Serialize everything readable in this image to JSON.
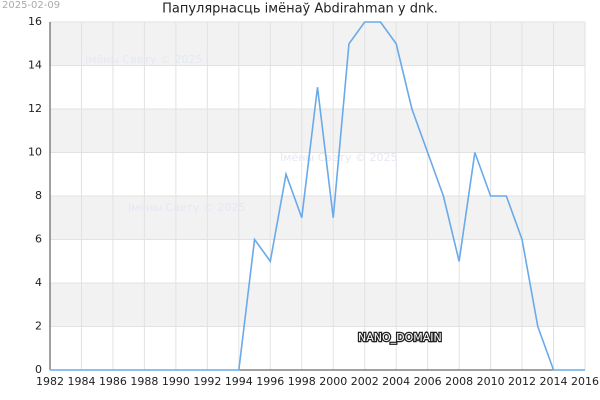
{
  "chart_data": {
    "type": "line",
    "title": "Папулярнасць імёнаў Abdirahman у dnk.",
    "date_stamp": "2025-02-09",
    "x": [
      1982,
      1983,
      1984,
      1985,
      1986,
      1987,
      1988,
      1989,
      1990,
      1991,
      1992,
      1993,
      1994,
      1995,
      1996,
      1997,
      1998,
      1999,
      2000,
      2001,
      2002,
      2003,
      2004,
      2005,
      2006,
      2007,
      2008,
      2009,
      2010,
      2011,
      2012,
      2013,
      2014,
      2015,
      2016
    ],
    "values": [
      0,
      0,
      0,
      0,
      0,
      0,
      0,
      0,
      0,
      0,
      0,
      0,
      0,
      6,
      5,
      9,
      7,
      13,
      7,
      15,
      16,
      16,
      15,
      12,
      10,
      8,
      5,
      10,
      8,
      8,
      6,
      2,
      0,
      0,
      0
    ],
    "color": "#6aaaea",
    "xlim": [
      1982,
      2016
    ],
    "xticks": [
      1982,
      1984,
      1986,
      1988,
      1990,
      1992,
      1994,
      1996,
      1998,
      2000,
      2002,
      2004,
      2006,
      2008,
      2010,
      2012,
      2014,
      2016
    ],
    "ylim": [
      0,
      16
    ],
    "yticks": [
      0,
      2,
      4,
      6,
      8,
      10,
      12,
      14,
      16
    ],
    "grid": true,
    "watermarks": [
      "Імёны Свету © 2025",
      "Імёны Свету © 2025",
      "Імёны Свету © 2025"
    ],
    "brand": "NANO_DOMAIN"
  }
}
